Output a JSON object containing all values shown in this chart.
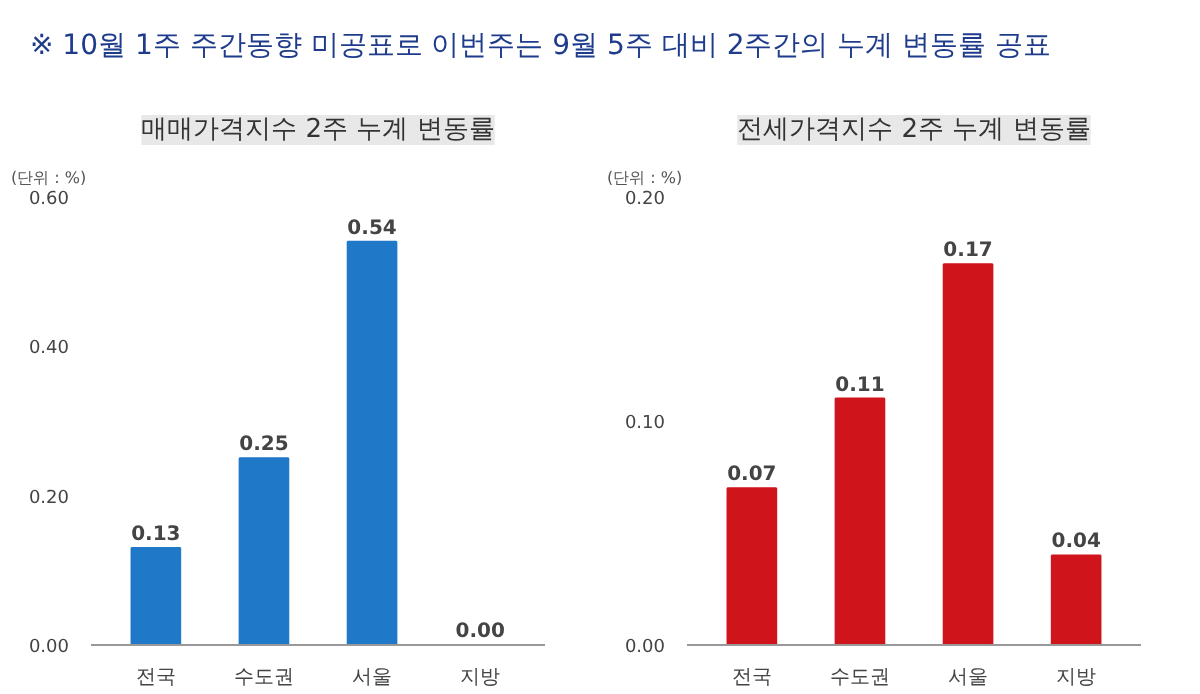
{
  "chart_data": [
    {
      "type": "bar",
      "title": "매매가격지수 2주 누계 변동률",
      "annotations": [
        "※ 10월 1주 주간동향 미공표로 이번주는 9월 5주 대비 2주간의 누계 변동률 공표",
        "(단위 : %)"
      ],
      "categories": [
        "전국",
        "수도권",
        "서울",
        "지방"
      ],
      "values": [
        0.13,
        0.25,
        0.54,
        0.0
      ],
      "color": "#1f78c8",
      "value_labels": [
        "0.13",
        "0.25",
        "0.54",
        "0.00"
      ],
      "ylim": [
        0,
        0.6
      ],
      "yticks": [
        {
          "value": 0,
          "label": "0.00"
        },
        {
          "value": 0.2,
          "label": "0.20"
        },
        {
          "value": 0.4,
          "label": "0.40"
        },
        {
          "value": 0.6,
          "label": "0.60"
        }
      ],
      "grid": false
    },
    {
      "type": "bar",
      "title": "전세가격지수 2주 누계 변동률",
      "annotations": [
        "(단위 : %)"
      ],
      "categories": [
        "전국",
        "수도권",
        "서울",
        "지방"
      ],
      "values": [
        0.07,
        0.11,
        0.17,
        0.04
      ],
      "color": "#d0141b",
      "value_labels": [
        "0.07",
        "0.11",
        "0.17",
        "0.04"
      ],
      "ylim": [
        0,
        0.2
      ],
      "yticks": [
        {
          "value": 0,
          "label": "0.00"
        },
        {
          "value": 0.1,
          "label": "0.10"
        },
        {
          "value": 0.2,
          "label": "0.20"
        }
      ],
      "grid": false
    }
  ]
}
